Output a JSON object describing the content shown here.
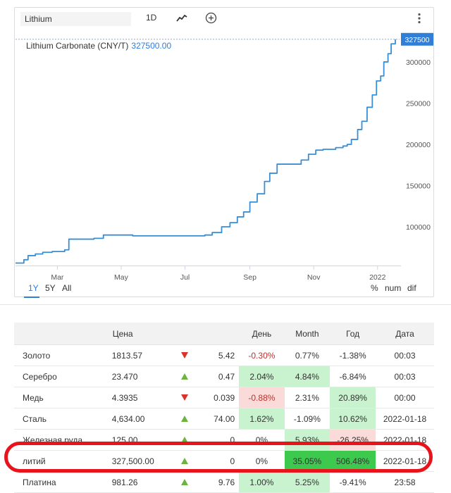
{
  "toolbar": {
    "symbol_value": "Lithium",
    "interval_label": "1D",
    "chart_type_icon": "line-chart-icon",
    "add_icon": "plus-circle-icon",
    "menu_icon": "vertical-dots-icon"
  },
  "instrument": {
    "name": "Lithium Carbonate (CNY/T)",
    "last_value": "327500.00",
    "last_badge": "327500"
  },
  "colors": {
    "line": "#3a8ed4",
    "accent": "#2f7ed8",
    "up_fill": "#c9f2cf",
    "up_strong": "#3cc94e",
    "down_fill": "#fbdada",
    "highlight": "#e8141c"
  },
  "chart_data": {
    "type": "line",
    "x_tick_labels": [
      "Mar",
      "May",
      "Jul",
      "Sep",
      "Nov",
      "2022"
    ],
    "y_tick_labels": [
      "100000",
      "150000",
      "200000",
      "250000",
      "300000"
    ],
    "ylim": [
      53000,
      335000
    ],
    "x_range": [
      "2021-01-20",
      "2022-01-18"
    ],
    "grid": false,
    "series": [
      {
        "x": [
          "2021-01-20",
          "2021-01-28",
          "2021-02-01",
          "2021-02-08",
          "2021-02-15",
          "2021-02-24",
          "2021-03-08",
          "2021-03-12",
          "2021-04-05",
          "2021-04-14",
          "2021-05-12",
          "2021-06-21",
          "2021-07-12",
          "2021-07-20",
          "2021-07-27",
          "2021-08-05",
          "2021-08-13",
          "2021-08-20",
          "2021-08-26",
          "2021-09-01",
          "2021-09-08",
          "2021-09-15",
          "2021-09-20",
          "2021-09-27",
          "2021-10-08",
          "2021-10-20",
          "2021-10-27",
          "2021-11-03",
          "2021-11-10",
          "2021-11-22",
          "2021-11-29",
          "2021-12-03",
          "2021-12-07",
          "2021-12-13",
          "2021-12-17",
          "2021-12-22",
          "2021-12-27",
          "2021-12-31",
          "2022-01-04",
          "2022-01-07",
          "2022-01-11",
          "2022-01-14",
          "2022-01-18"
        ],
        "values": [
          56000,
          60000,
          65000,
          67000,
          69000,
          70000,
          72000,
          85000,
          86000,
          90000,
          89000,
          89000,
          89000,
          90000,
          93000,
          100000,
          105000,
          112000,
          118000,
          130000,
          140000,
          155000,
          165000,
          176000,
          176000,
          181000,
          188000,
          193000,
          194000,
          196000,
          198000,
          200000,
          206000,
          218000,
          228000,
          245000,
          260000,
          277000,
          283000,
          300000,
          310000,
          322000,
          327500
        ]
      }
    ]
  },
  "ranges": [
    {
      "label": "1Y",
      "active": true
    },
    {
      "label": "5Y",
      "active": false
    },
    {
      "label": "All",
      "active": false
    }
  ],
  "modes": [
    "%",
    "num",
    "dif"
  ],
  "table": {
    "headers": [
      "",
      "Цена",
      "",
      "",
      "День",
      "Month",
      "Год",
      "Дата"
    ],
    "rows": [
      {
        "name": "Золото",
        "price": "1813.57",
        "dir": "down",
        "change": "5.42",
        "day": "-0.30%",
        "month": "0.77%",
        "year": "-1.38%",
        "date": "00:03",
        "day_bg": "",
        "month_bg": "",
        "year_bg": ""
      },
      {
        "name": "Серебро",
        "price": "23.470",
        "dir": "up",
        "change": "0.47",
        "day": "2.04%",
        "month": "4.84%",
        "year": "-6.84%",
        "date": "00:03",
        "day_bg": "up_fill",
        "month_bg": "up_fill",
        "year_bg": ""
      },
      {
        "name": "Медь",
        "price": "4.3935",
        "dir": "down",
        "change": "0.039",
        "day": "-0.88%",
        "month": "2.31%",
        "year": "20.89%",
        "date": "00:00",
        "day_bg": "down_fill",
        "month_bg": "",
        "year_bg": "up_fill"
      },
      {
        "name": "Сталь",
        "price": "4,634.00",
        "dir": "up",
        "change": "74.00",
        "day": "1.62%",
        "month": "-1.09%",
        "year": "10.62%",
        "date": "2022-01-18",
        "day_bg": "up_fill",
        "month_bg": "",
        "year_bg": "up_fill"
      },
      {
        "name": "Железная руда",
        "price": "125.00",
        "dir": "up",
        "change": "0",
        "day": "0%",
        "month": "5.93%",
        "year": "-26.25%",
        "date": "2022-01-18",
        "day_bg": "",
        "month_bg": "up_fill",
        "year_bg": "down_fill"
      },
      {
        "name": "литий",
        "price": "327,500.00",
        "dir": "up",
        "change": "0",
        "day": "0%",
        "month": "35.05%",
        "year": "506.48%",
        "date": "2022-01-18",
        "day_bg": "",
        "month_bg": "up_strong",
        "year_bg": "up_strong"
      },
      {
        "name": "Платина",
        "price": "981.26",
        "dir": "up",
        "change": "9.76",
        "day": "1.00%",
        "month": "5.25%",
        "year": "-9.41%",
        "date": "23:58",
        "day_bg": "up_fill",
        "month_bg": "up_fill",
        "year_bg": ""
      }
    ]
  }
}
